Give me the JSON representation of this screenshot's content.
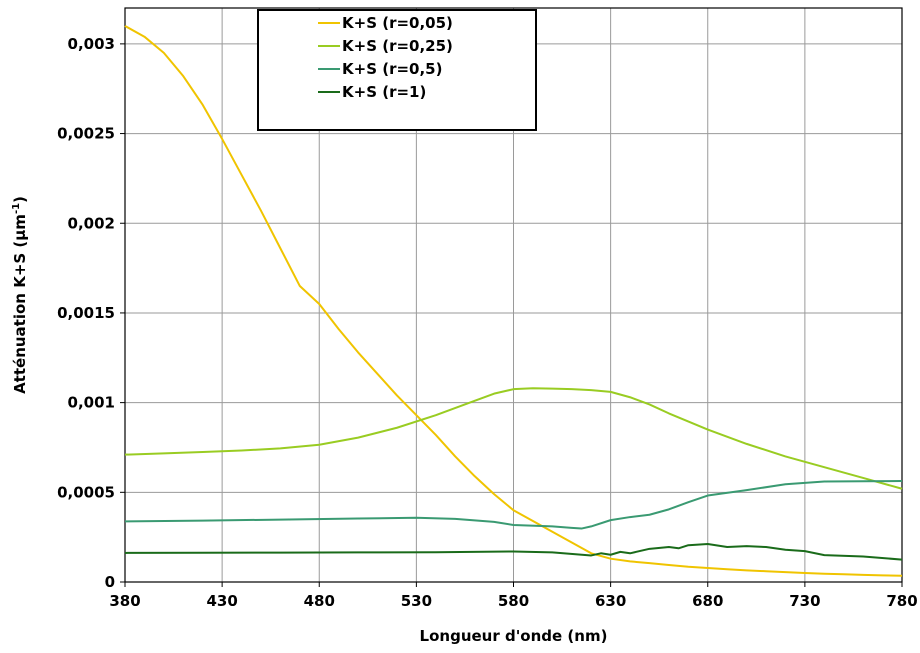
{
  "chart_data": {
    "type": "line",
    "xlabel": "Longueur d'onde  (nm)",
    "ylabel": "Atténuation K+S (µm",
    "ylabel_sup": "-1",
    "ylabel_suffix": ")",
    "xlim": [
      380,
      780
    ],
    "ylim": [
      0,
      0.0032
    ],
    "xticks": [
      380,
      430,
      480,
      530,
      580,
      630,
      680,
      730,
      780
    ],
    "xtick_labels": [
      "380",
      "430",
      "480",
      "530",
      "580",
      "630",
      "680",
      "730",
      "780"
    ],
    "yticks": [
      0,
      0.0005,
      0.001,
      0.0015,
      0.002,
      0.0025,
      0.003
    ],
    "ytick_labels": [
      "0",
      "0,0005",
      "0,001",
      "0,0015",
      "0,002",
      "0,0025",
      "0,003"
    ],
    "grid": true,
    "legend_position": "top-left",
    "series": [
      {
        "name": "K+S (r=0,05)",
        "color": "#f0c400",
        "x": [
          380,
          390,
          400,
          410,
          420,
          430,
          440,
          450,
          460,
          470,
          480,
          490,
          500,
          510,
          520,
          530,
          540,
          550,
          560,
          570,
          580,
          590,
          600,
          610,
          620,
          630,
          640,
          650,
          660,
          670,
          680,
          690,
          700,
          710,
          720,
          730,
          740,
          750,
          760,
          770,
          780
        ],
        "y": [
          0.0031,
          0.00304,
          0.00295,
          0.00282,
          0.00266,
          0.00247,
          0.00227,
          0.00207,
          0.00186,
          0.00165,
          0.00155,
          0.00141,
          0.00128,
          0.00116,
          0.00104,
          0.00093,
          0.00082,
          0.0007,
          0.00059,
          0.00049,
          0.0004,
          0.00034,
          0.00028,
          0.00022,
          0.00016,
          0.00013,
          0.000115,
          0.000105,
          9.5e-05,
          8.5e-05,
          7.8e-05,
          7.1e-05,
          6.5e-05,
          6e-05,
          5.5e-05,
          5e-05,
          4.6e-05,
          4.3e-05,
          4e-05,
          3.7e-05,
          3.5e-05
        ]
      },
      {
        "name": "K+S (r=0,25)",
        "color": "#99cc22",
        "x": [
          380,
          400,
          420,
          440,
          460,
          480,
          500,
          520,
          540,
          560,
          570,
          580,
          590,
          600,
          610,
          620,
          630,
          640,
          650,
          660,
          680,
          700,
          720,
          740,
          760,
          780
        ],
        "y": [
          0.00071,
          0.000717,
          0.000725,
          0.000733,
          0.000745,
          0.000765,
          0.000805,
          0.00086,
          0.00093,
          0.00101,
          0.00105,
          0.001075,
          0.00108,
          0.001078,
          0.001075,
          0.00107,
          0.00106,
          0.00103,
          0.00099,
          0.00094,
          0.00085,
          0.00077,
          0.0007,
          0.00064,
          0.00058,
          0.00052
        ]
      },
      {
        "name": "K+S (r=0,5)",
        "color": "#3a9a72",
        "x": [
          380,
          420,
          460,
          500,
          530,
          550,
          570,
          580,
          600,
          610,
          615,
          620,
          630,
          640,
          650,
          660,
          670,
          680,
          700,
          720,
          740,
          760,
          780
        ],
        "y": [
          0.000338,
          0.000342,
          0.000348,
          0.000354,
          0.000358,
          0.000352,
          0.000335,
          0.000318,
          0.00031,
          0.000302,
          0.000298,
          0.00031,
          0.000345,
          0.000362,
          0.000375,
          0.000405,
          0.000445,
          0.000482,
          0.000512,
          0.000545,
          0.00056,
          0.000562,
          0.000563
        ]
      },
      {
        "name": "K+S (r=1)",
        "color": "#1a6b1a",
        "x": [
          380,
          420,
          460,
          500,
          540,
          580,
          600,
          620,
          625,
          630,
          635,
          640,
          650,
          660,
          665,
          670,
          680,
          690,
          700,
          710,
          720,
          730,
          740,
          760,
          780
        ],
        "y": [
          0.000162,
          0.000163,
          0.000164,
          0.000165,
          0.000166,
          0.00017,
          0.000165,
          0.000148,
          0.00016,
          0.000152,
          0.000168,
          0.00016,
          0.000185,
          0.000195,
          0.000188,
          0.000205,
          0.000212,
          0.000195,
          0.0002,
          0.000195,
          0.00018,
          0.000172,
          0.00015,
          0.000142,
          0.000125
        ]
      }
    ]
  }
}
